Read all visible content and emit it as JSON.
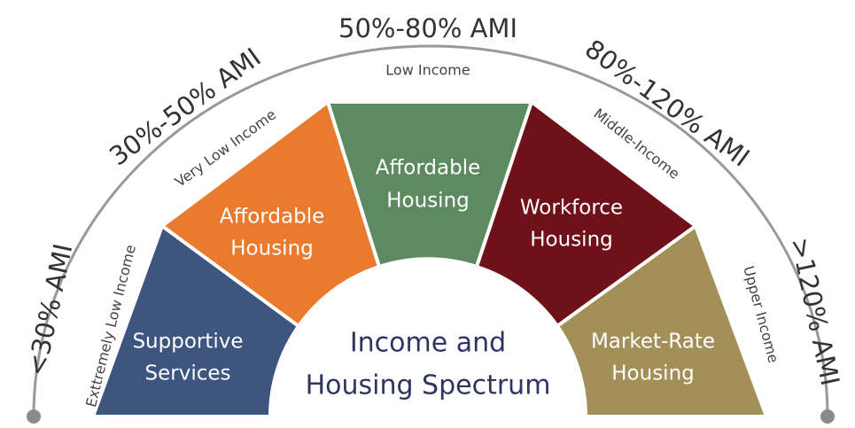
{
  "title": [
    "Income and",
    "Housing Spectrum"
  ],
  "ami_ranges": [
    "<30% AMI",
    "30%-50% AMI",
    "50%-80% AMI",
    "80%-120% AMI",
    ">120% AMI"
  ],
  "income_levels": [
    "Exttremely Low Income",
    "Very Low Income",
    "Low Income",
    "Middle-Income",
    "Upper Income"
  ],
  "segments": [
    {
      "lines": [
        "Supportive",
        "Services"
      ]
    },
    {
      "lines": [
        "Affordable",
        "Housing"
      ]
    },
    {
      "lines": [
        "Affordable",
        "Housing"
      ]
    },
    {
      "lines": [
        "Workforce",
        "Housing"
      ]
    },
    {
      "lines": [
        "Market-Rate",
        "Housing"
      ]
    }
  ]
}
